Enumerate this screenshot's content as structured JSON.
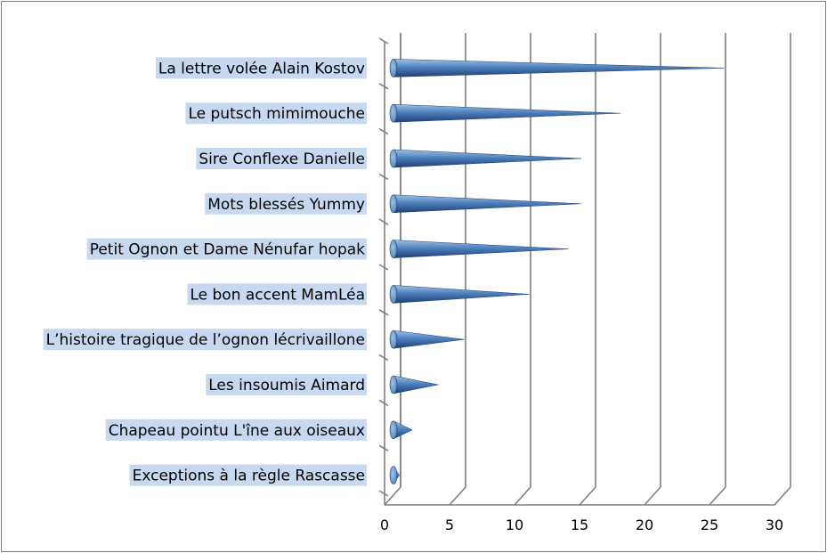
{
  "chart_data": {
    "type": "bar",
    "orientation": "horizontal",
    "style": "3d-cone",
    "title": "",
    "xlabel": "",
    "ylabel": "",
    "categories": [
      "La lettre volée Alain Kostov",
      "Le putsch mimimouche",
      "Sire Conflexe Danielle",
      "Mots blessés Yummy",
      "Petit Ognon et Dame Nénufar hopak",
      "Le bon accent MamLéa",
      "L’histoire tragique de l’ognon lécrivaillone",
      "Les insoumis Aimard",
      "Chapeau pointu L'îne aux oiseaux",
      "Exceptions à la règle Rascasse"
    ],
    "values": [
      26,
      18,
      15,
      15,
      14,
      11,
      6,
      4,
      2,
      1
    ],
    "xlim": [
      0,
      30
    ],
    "xticks": [
      "0",
      "5",
      "10",
      "15",
      "20",
      "25",
      "30"
    ],
    "grid": true,
    "legend": "none",
    "colors": {
      "bar_light": "#9dc3e6",
      "bar_mid": "#4f81bd",
      "bar_dark": "#1f3f73",
      "label_highlight": "#c6d9f1",
      "gridline": "#7f7f7f"
    }
  }
}
